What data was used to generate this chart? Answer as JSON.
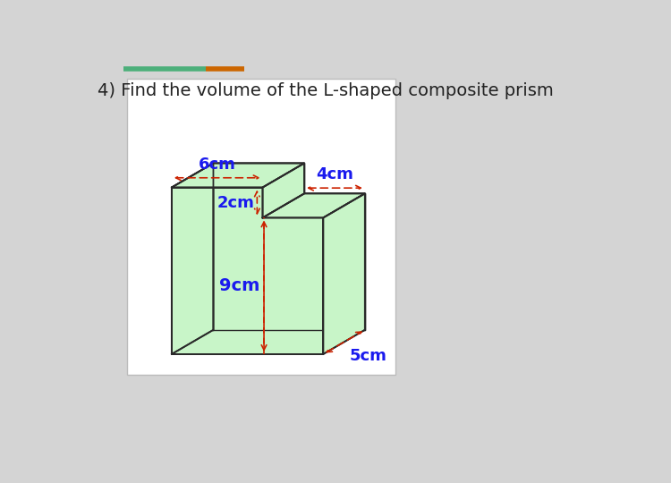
{
  "title": "4) Find the volume of the L-shaped composite prism",
  "title_fontsize": 14,
  "title_color": "#222222",
  "background_color": "#d4d4d4",
  "box_background": "#ffffff",
  "shape_fill": "#c8f5c8",
  "shape_edge": "#2a2a2a",
  "dim_color": "#cc2200",
  "label_color": "#1a1aee",
  "label_fontsize": 13,
  "dim_6cm": "6cm",
  "dim_4cm": "4cm",
  "dim_2cm": "2cm",
  "dim_9cm": "9cm",
  "dim_5cm": "5cm",
  "header_line_color1": "#4caf7a",
  "header_line_color2": "#cc6600"
}
